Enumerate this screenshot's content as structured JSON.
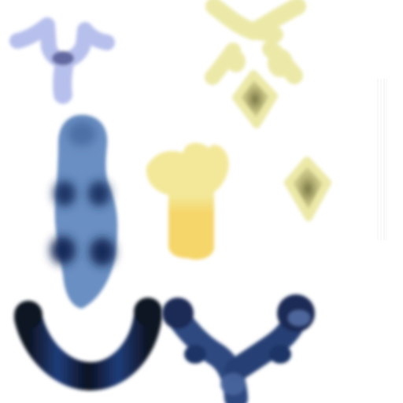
{
  "canvas": {
    "background": "#ffffff"
  },
  "palette": {
    "lavender": "#b7c0ec",
    "lavender_dark": "#4d558f",
    "butter": "#ece9a8",
    "butter_core": "#8c8a55",
    "steel_blue": "#6a8fc2",
    "navy": "#1d3466",
    "cream_yellow": "#f3e89a",
    "sun_yellow": "#f5d66a",
    "ink_black": "#0e1423",
    "cobalt": "#203d7a",
    "slate_navy": "#2f4a80",
    "guide_gray": "#e6e6e6"
  },
  "strokes": [
    {
      "name": "lavender-y-shape",
      "color": "lavender"
    },
    {
      "name": "butter-star-shape",
      "color": "butter"
    },
    {
      "name": "butter-diamond-left",
      "color": "butter"
    },
    {
      "name": "butter-diamond-right",
      "color": "butter"
    },
    {
      "name": "steel-blue-column",
      "color": "steel_blue"
    },
    {
      "name": "yellow-tulip-shape",
      "color": "cream_yellow"
    },
    {
      "name": "dark-u-curve",
      "color": "ink_black"
    },
    {
      "name": "dark-y-branch",
      "color": "slate_navy"
    },
    {
      "name": "vertical-guide-lines",
      "color": "guide_gray"
    }
  ]
}
